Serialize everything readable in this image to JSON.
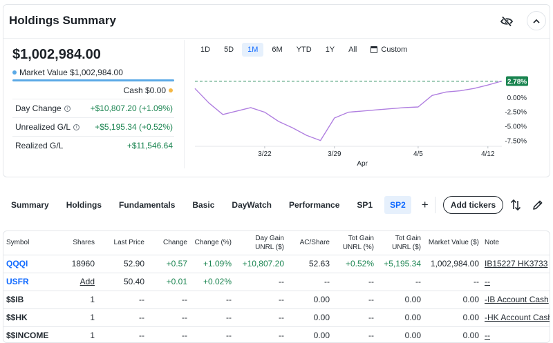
{
  "header": {
    "title": "Holdings Summary",
    "icons": {
      "visibility": "eye-off-icon",
      "collapse": "chevron-up-icon"
    }
  },
  "summary": {
    "total_value": "$1,002,984.00",
    "market_value_label": "Market Value $1,002,984.00",
    "cash_label": "Cash $0.00",
    "colors": {
      "market_value": "#5aa9e6",
      "cash": "#f5b845",
      "positive": "#1a8450",
      "link": "#0f69ff"
    },
    "stats": [
      {
        "label": "Day Change",
        "value": "+$10,807.20 (+1.09%)",
        "info": true
      },
      {
        "label": "Unrealized G/L",
        "value": "+$5,195.34 (+0.52%)",
        "info": true
      },
      {
        "label": "Realized G/L",
        "value": "+$11,546.64",
        "info": false
      }
    ]
  },
  "ranges": {
    "items": [
      "1D",
      "5D",
      "1M",
      "6M",
      "YTD",
      "1Y",
      "All",
      "Custom"
    ],
    "active": "1M"
  },
  "chart_data": {
    "type": "line",
    "x": [
      "3/15",
      "3/18",
      "3/19",
      "3/20",
      "3/21",
      "3/22",
      "3/25",
      "3/26",
      "3/27",
      "3/28",
      "3/29",
      "3/30",
      "4/1",
      "4/2",
      "4/3",
      "4/4",
      "4/5",
      "4/8",
      "4/9",
      "4/10",
      "4/11",
      "4/12",
      "4/15"
    ],
    "values": [
      1.5,
      -1.0,
      -3.0,
      -2.4,
      -1.8,
      -2.6,
      -4.2,
      -5.3,
      -6.6,
      -7.5,
      -3.6,
      -2.6,
      -2.4,
      -2.2,
      -2.0,
      -1.8,
      -1.7,
      0.3,
      0.9,
      1.1,
      1.5,
      2.1,
      2.78
    ],
    "x_tick_labels": [
      "3/22",
      "3/29",
      "4/5",
      "4/12"
    ],
    "x_sublabel": "Apr",
    "y_tick_labels": [
      "0.00%",
      "-2.50%",
      "-5.00%",
      "-7.50%"
    ],
    "y_ticks": [
      0,
      -2.5,
      -5,
      -7.5
    ],
    "ylim": [
      -8.5,
      3.2
    ],
    "last_value_label": "2.78%",
    "line_color": "#b07fe0",
    "badge_color": "#1a8450",
    "grid": true
  },
  "tabs": {
    "items": [
      "Summary",
      "Holdings",
      "Fundamentals",
      "Basic",
      "DayWatch",
      "Performance",
      "SP1",
      "SP2"
    ],
    "active": "SP2",
    "add_label": "+",
    "add_tickers_label": "Add tickers",
    "icons": {
      "sort": "sort-arrows-icon",
      "edit": "pencil-icon"
    }
  },
  "table": {
    "columns": [
      "Symbol",
      "Shares",
      "Last Price",
      "Change",
      "Change (%)",
      "Day Gain UNRL ($)",
      "AC/Share",
      "Tot Gain UNRL (%)",
      "Tot Gain UNRL ($)",
      "Market Value ($)",
      "Note"
    ],
    "rows": [
      [
        "QQQI",
        "18960",
        "52.90",
        "+0.57",
        "+1.09%",
        "+10,807.20",
        "52.63",
        "+0.52%",
        "+5,195.34",
        "1,002,984.00",
        "IB15227 HK3733"
      ],
      [
        "USFR",
        "Add",
        "50.40",
        "+0.01",
        "+0.02%",
        "--",
        "--",
        "--",
        "--",
        "--",
        "--"
      ],
      [
        "$$IB",
        "1",
        "--",
        "--",
        "--",
        "--",
        "0.00",
        "--",
        "0.00",
        "0.00",
        "-IB Account Cash"
      ],
      [
        "$$HK",
        "1",
        "--",
        "--",
        "--",
        "--",
        "0.00",
        "--",
        "0.00",
        "0.00",
        "-HK Account Cash"
      ],
      [
        "$$INCOME",
        "1",
        "--",
        "--",
        "--",
        "--",
        "0.00",
        "--",
        "0.00",
        "0.00",
        "--"
      ]
    ]
  }
}
